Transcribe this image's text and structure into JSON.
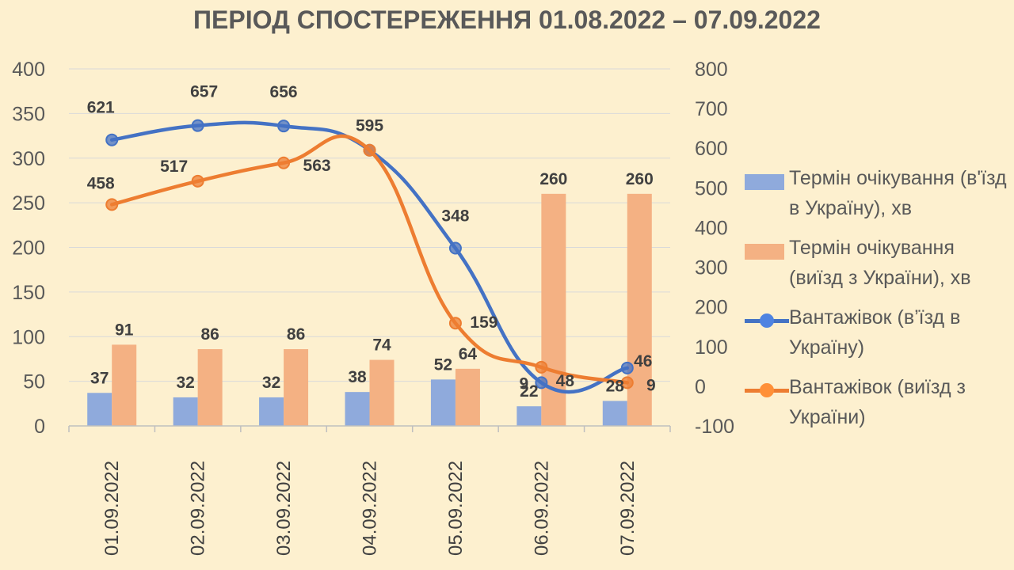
{
  "chart_data": {
    "type": "bar+line",
    "title": "ПЕРІОД СПОСТЕРЕЖЕННЯ 01.08.2022 – 07.09.2022",
    "categories": [
      "01.09.2022",
      "02.09.2022",
      "03.09.2022",
      "04.09.2022",
      "05.09.2022",
      "06.09.2022",
      "07.09.2022"
    ],
    "y_left": {
      "min": 0,
      "max": 400,
      "ticks": [
        0,
        50,
        100,
        150,
        200,
        250,
        300,
        350,
        400
      ]
    },
    "y_right": {
      "min": -100,
      "max": 800,
      "ticks": [
        -100,
        0,
        100,
        200,
        300,
        400,
        500,
        600,
        700,
        800
      ]
    },
    "grid": true,
    "legend_position": "right",
    "series": [
      {
        "name": "Термін очікування (в'їзд в Україну), хв",
        "kind": "bar",
        "axis": "left",
        "color": "#8faadc",
        "values": [
          37,
          32,
          32,
          38,
          52,
          22,
          28
        ]
      },
      {
        "name": "Термін очікування (виїзд з України), хв",
        "kind": "bar",
        "axis": "left",
        "color": "#f4b183",
        "values": [
          91,
          86,
          86,
          74,
          64,
          260,
          260
        ]
      },
      {
        "name": "Вантажівок (в’їзд в Україну)",
        "kind": "line",
        "axis": "right",
        "color": "#4472c4",
        "values": [
          621,
          657,
          656,
          595,
          348,
          9,
          46
        ]
      },
      {
        "name": "Вантажівок (виїзд з України)",
        "kind": "line",
        "axis": "right",
        "color": "#ed7d31",
        "values": [
          458,
          517,
          563,
          595,
          159,
          48,
          9
        ]
      }
    ]
  }
}
